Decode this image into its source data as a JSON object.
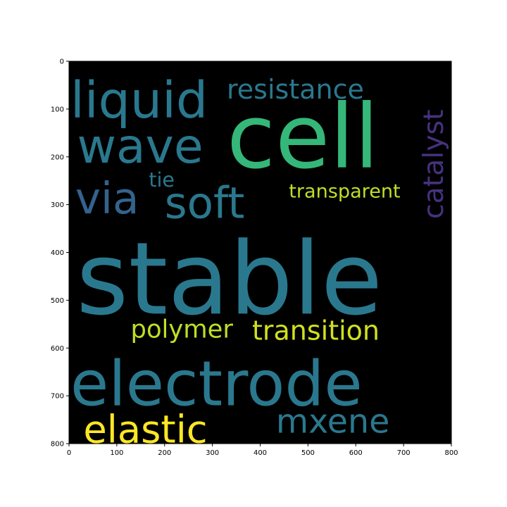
{
  "chart_data": {
    "type": "wordcloud",
    "title": "",
    "xlabel": "",
    "ylabel": "",
    "xlim": [
      0,
      800
    ],
    "ylim": [
      800,
      0
    ],
    "x_ticks": [
      0,
      100,
      200,
      300,
      400,
      500,
      600,
      700,
      800
    ],
    "y_ticks": [
      0,
      100,
      200,
      300,
      400,
      500,
      600,
      700,
      800
    ],
    "background": "#000000",
    "words": [
      {
        "text": "stable",
        "color": "#2a788e",
        "x": 15,
        "y": 528,
        "size": 210,
        "rotate": 0
      },
      {
        "text": "electrode",
        "color": "#2a788e",
        "x": 3,
        "y": 720,
        "size": 130,
        "rotate": 0
      },
      {
        "text": "cell",
        "color": "#35b779",
        "x": 330,
        "y": 222,
        "size": 185,
        "rotate": 0
      },
      {
        "text": "liquid",
        "color": "#2a788e",
        "x": 3,
        "y": 118,
        "size": 105,
        "rotate": 0
      },
      {
        "text": "wave",
        "color": "#2a788e",
        "x": 17,
        "y": 212,
        "size": 100,
        "rotate": 0
      },
      {
        "text": "via",
        "color": "#33638d",
        "x": 13,
        "y": 318,
        "size": 90,
        "rotate": 0
      },
      {
        "text": "soft",
        "color": "#2a788e",
        "x": 200,
        "y": 328,
        "size": 90,
        "rotate": 0
      },
      {
        "text": "resistance",
        "color": "#2a788e",
        "x": 330,
        "y": 78,
        "size": 56,
        "rotate": 0
      },
      {
        "text": "tie",
        "color": "#2a788e",
        "x": 167,
        "y": 262,
        "size": 42,
        "rotate": 0
      },
      {
        "text": "transparent",
        "color": "#bddf26",
        "x": 460,
        "y": 285,
        "size": 40,
        "rotate": 0
      },
      {
        "text": "catalyst",
        "color": "#46327e",
        "x": 782,
        "y": 330,
        "size": 58,
        "rotate": -90
      },
      {
        "text": "polymer",
        "color": "#bddf26",
        "x": 129,
        "y": 578,
        "size": 52,
        "rotate": 0
      },
      {
        "text": "transition",
        "color": "#d0e11c",
        "x": 383,
        "y": 583,
        "size": 56,
        "rotate": 0
      },
      {
        "text": "mxene",
        "color": "#2a788e",
        "x": 433,
        "y": 777,
        "size": 70,
        "rotate": 0
      },
      {
        "text": "elastic",
        "color": "#fde725",
        "x": 30,
        "y": 798,
        "size": 80,
        "rotate": 0
      }
    ]
  }
}
